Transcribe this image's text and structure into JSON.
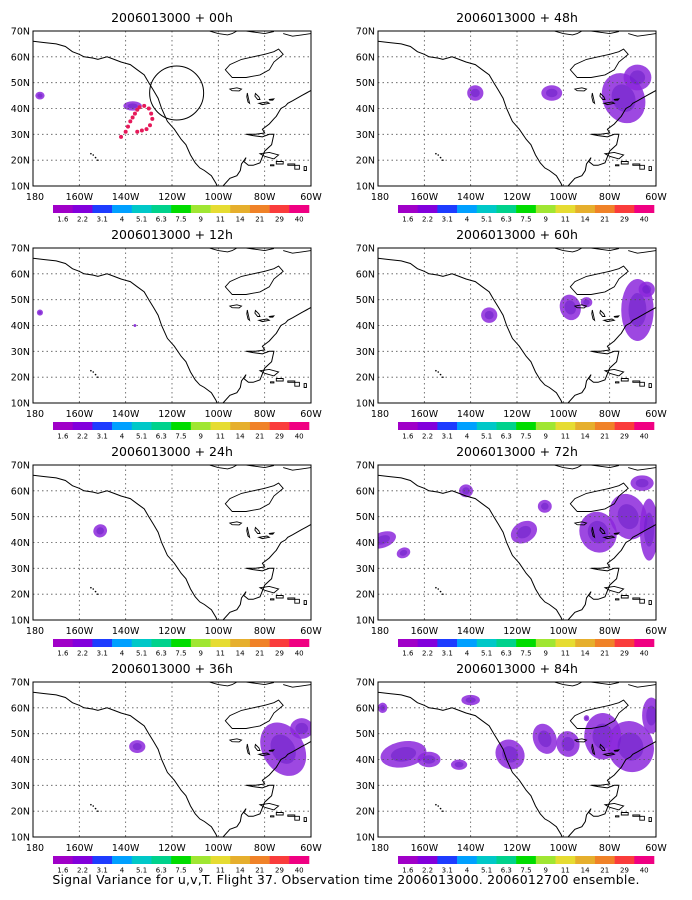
{
  "caption": "Signal Variance for u,v,T. Flight 37. Observation time 2006013000. 2006012700 ensemble.",
  "panel_titles": [
    "2006013000 + 00h",
    "2006013000 + 48h",
    "2006013000 + 12h",
    "2006013000 + 60h",
    "2006013000 + 24h",
    "2006013000 + 72h",
    "2006013000 + 36h",
    "2006013000 + 84h"
  ],
  "lat_labels": [
    "70N",
    "60N",
    "50N",
    "40N",
    "30N",
    "20N",
    "10N"
  ],
  "lon_labels": [
    "180",
    "160W",
    "140W",
    "120W",
    "100W",
    "80W",
    "60W"
  ],
  "colorbar": {
    "labels": [
      "1.6",
      "2.2",
      "3.1",
      "4",
      "5.1",
      "6.3",
      "7.5",
      "9",
      "11",
      "14",
      "21",
      "29",
      "40"
    ],
    "colors": [
      "#a000c8",
      "#8200dc",
      "#1e3cff",
      "#00a0ff",
      "#00c8c8",
      "#00d28c",
      "#00dc00",
      "#a0e632",
      "#e6dc32",
      "#e6af2d",
      "#f08228",
      "#fa3c3c",
      "#f00082"
    ]
  },
  "colors": {
    "signal_fill": "#8c28dc",
    "signal_fill_light": "#a05ae6",
    "track_dots": "#e6195a"
  }
}
